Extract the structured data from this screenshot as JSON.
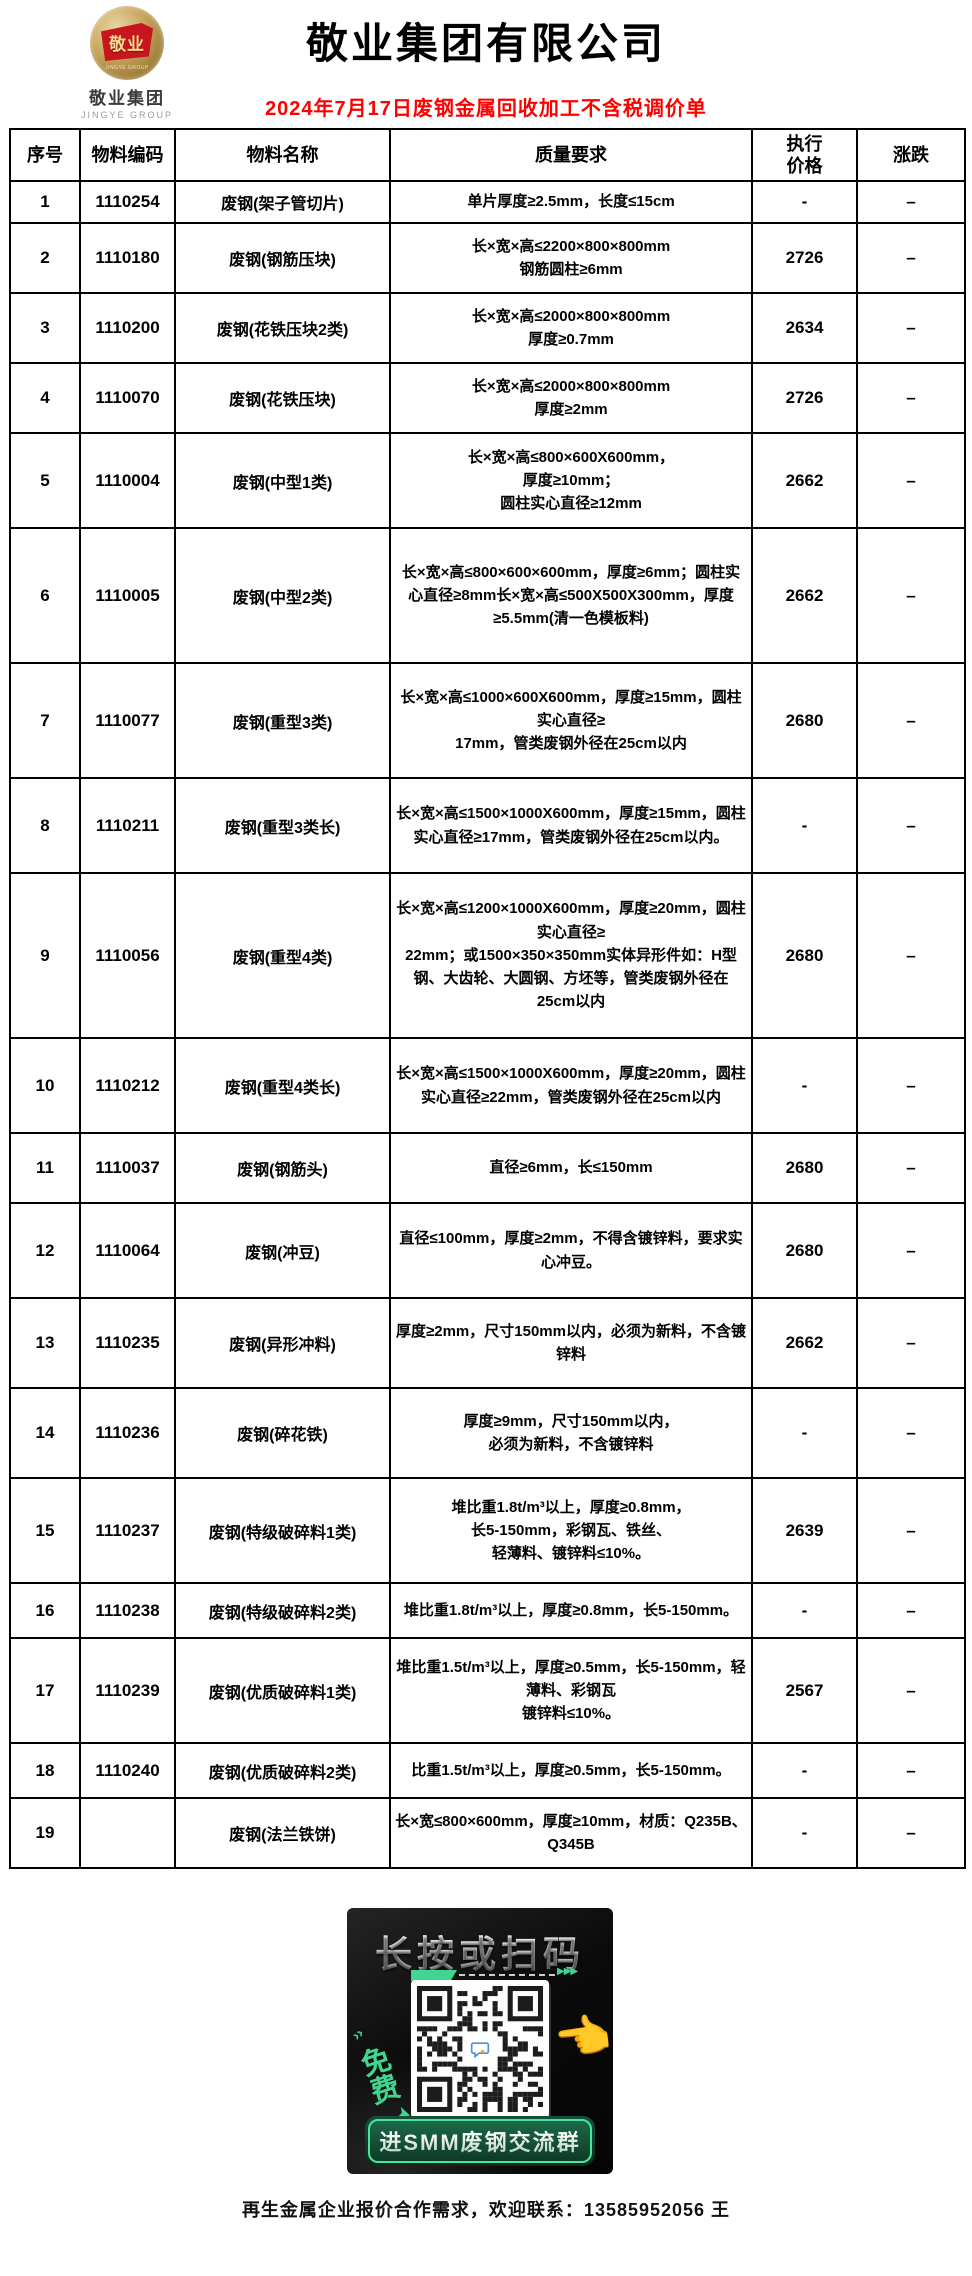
{
  "header": {
    "title": "敬业集团有限公司",
    "subtitle": "2024年7月17日废钢金属回收加工不含税调价单",
    "subtitle_color": "#ff0000",
    "logo": {
      "badge_text": "敬业",
      "badge_subtext": "JINGYE GROUP",
      "name_cn": "敬业集团",
      "name_en": "JINGYE GROUP"
    }
  },
  "table": {
    "columns": [
      "序号",
      "物料编码",
      "物料名称",
      "质量要求",
      "执行\n价格",
      "涨跌"
    ],
    "rows": [
      {
        "no": "1",
        "code": "1110254",
        "name": "废钢(架子管切片)",
        "req": "单片厚度≥2.5mm，长度≤15cm",
        "price": "-",
        "change": "–"
      },
      {
        "no": "2",
        "code": "1110180",
        "name": "废钢(钢筋压块)",
        "req": "长×宽×高≤2200×800×800mm\n钢筋圆柱≥6mm",
        "price": "2726",
        "change": "–"
      },
      {
        "no": "3",
        "code": "1110200",
        "name": "废钢(花铁压块2类)",
        "req": "长×宽×高≤2000×800×800mm\n厚度≥0.7mm",
        "price": "2634",
        "change": "–"
      },
      {
        "no": "4",
        "code": "1110070",
        "name": "废钢(花铁压块)",
        "req": "长×宽×高≤2000×800×800mm\n厚度≥2mm",
        "price": "2726",
        "change": "–"
      },
      {
        "no": "5",
        "code": "1110004",
        "name": "废钢(中型1类)",
        "req": "长×宽×高≤800×600X600mm，\n厚度≥10mm；\n圆柱实心直径≥12mm",
        "price": "2662",
        "change": "–"
      },
      {
        "no": "6",
        "code": "1110005",
        "name": "废钢(中型2类)",
        "req": "长×宽×高≤800×600×600mm，厚度≥6mm；圆柱实心直径≥8mm长×宽×高≤500X500X300mm，厚度≥5.5mm(清一色模板料)",
        "price": "2662",
        "change": "–"
      },
      {
        "no": "7",
        "code": "1110077",
        "name": "废钢(重型3类)",
        "req": "长×宽×高≤1000×600X600mm，厚度≥15mm，圆柱实心直径≥\n17mm，管类废钢外径在25cm以内",
        "price": "2680",
        "change": "–"
      },
      {
        "no": "8",
        "code": "1110211",
        "name": "废钢(重型3类长)",
        "req": "长×宽×高≤1500×1000X600mm，厚度≥15mm，圆柱实心直径≥17mm，管类废钢外径在25cm以内。",
        "price": "-",
        "change": "–"
      },
      {
        "no": "9",
        "code": "1110056",
        "name": "废钢(重型4类)",
        "req": "长×宽×高≤1200×1000X600mm，厚度≥20mm，圆柱实心直径≥\n22mm；或1500×350×350mm实体异形件如：H型钢、大齿轮、大圆钢、方坯等，管类废钢外径在25cm以内",
        "price": "2680",
        "change": "–"
      },
      {
        "no": "10",
        "code": "1110212",
        "name": "废钢(重型4类长)",
        "req": "长×宽×高≤1500×1000X600mm，厚度≥20mm，圆柱实心直径≥22mm，管类废钢外径在25cm以内",
        "price": "-",
        "change": "–"
      },
      {
        "no": "11",
        "code": "1110037",
        "name": "废钢(钢筋头)",
        "req": "直径≥6mm，长≤150mm",
        "price": "2680",
        "change": "–"
      },
      {
        "no": "12",
        "code": "1110064",
        "name": "废钢(冲豆)",
        "req": "直径≤100mm，厚度≥2mm，不得含镀锌料，要求实心冲豆。",
        "price": "2680",
        "change": "–"
      },
      {
        "no": "13",
        "code": "1110235",
        "name": "废钢(异形冲料)",
        "req": "厚度≥2mm，尺寸150mm以内，必须为新料，不含镀锌料",
        "price": "2662",
        "change": "–"
      },
      {
        "no": "14",
        "code": "1110236",
        "name": "废钢(碎花铁)",
        "req": "厚度≥9mm，尺寸150mm以内，\n必须为新料，不含镀锌料",
        "price": "-",
        "change": "–"
      },
      {
        "no": "15",
        "code": "1110237",
        "name": "废钢(特级破碎料1类)",
        "req": "堆比重1.8t/m³以上，厚度≥0.8mm，\n长5-150mm，彩钢瓦、铁丝、\n轻薄料、镀锌料≤10%。",
        "price": "2639",
        "change": "–"
      },
      {
        "no": "16",
        "code": "1110238",
        "name": "废钢(特级破碎料2类)",
        "req": "堆比重1.8t/m³以上，厚度≥0.8mm，长5-150mm。",
        "price": "-",
        "change": "–"
      },
      {
        "no": "17",
        "code": "1110239",
        "name": "废钢(优质破碎料1类)",
        "req": "堆比重1.5t/m³以上，厚度≥0.5mm，长5-150mm，轻薄料、彩钢瓦\n镀锌料≤10%。",
        "price": "2567",
        "change": "–"
      },
      {
        "no": "18",
        "code": "1110240",
        "name": "废钢(优质破碎料2类)",
        "req": "比重1.5t/m³以上，厚度≥0.5mm，长5-150mm。",
        "price": "-",
        "change": "–"
      },
      {
        "no": "19",
        "code": "",
        "name": "废钢(法兰铁饼)",
        "req": "长×宽≤800×600mm，厚度≥10mm，材质：Q235B、Q345B",
        "price": "-",
        "change": "–"
      }
    ]
  },
  "qr_card": {
    "title": "长按或扫码",
    "free_label": "免费",
    "button_label": "进SMM废钢交流群",
    "accent_green": "#3fd68f",
    "arrows": "▶▶▶",
    "chevrons": "››",
    "down_arrow": "➤"
  },
  "footer": {
    "contact": "再生金属企业报价合作需求，欢迎联系：13585952056 王"
  }
}
